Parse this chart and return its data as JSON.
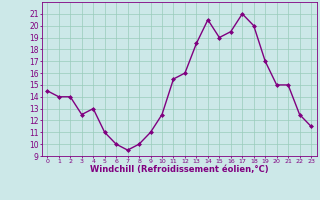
{
  "hours": [
    0,
    1,
    2,
    3,
    4,
    5,
    6,
    7,
    8,
    9,
    10,
    11,
    12,
    13,
    14,
    15,
    16,
    17,
    18,
    19,
    20,
    21,
    22,
    23
  ],
  "values": [
    14.5,
    14.0,
    14.0,
    12.5,
    13.0,
    11.0,
    10.0,
    9.5,
    10.0,
    11.0,
    12.5,
    15.5,
    16.0,
    18.5,
    20.5,
    19.0,
    19.5,
    21.0,
    20.0,
    17.0,
    15.0,
    15.0,
    12.5,
    11.5
  ],
  "line_color": "#800080",
  "marker": "D",
  "marker_size": 2.0,
  "bg_color": "#cce8e8",
  "grid_color": "#99ccbb",
  "xlabel": "Windchill (Refroidissement éolien,°C)",
  "xlabel_color": "#800080",
  "tick_color": "#800080",
  "ylim": [
    9,
    22
  ],
  "xlim": [
    -0.5,
    23.5
  ],
  "yticks": [
    9,
    10,
    11,
    12,
    13,
    14,
    15,
    16,
    17,
    18,
    19,
    20,
    21
  ],
  "xticks": [
    0,
    1,
    2,
    3,
    4,
    5,
    6,
    7,
    8,
    9,
    10,
    11,
    12,
    13,
    14,
    15,
    16,
    17,
    18,
    19,
    20,
    21,
    22,
    23
  ],
  "line_width": 1.0
}
